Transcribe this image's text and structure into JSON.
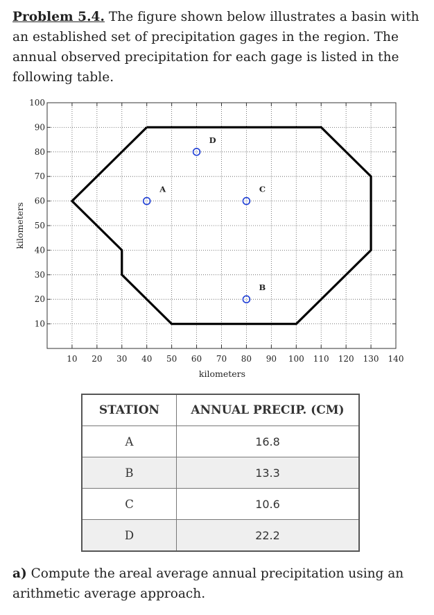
{
  "problem": {
    "heading": "Problem 5.4.",
    "text": " The figure shown below illustrates a basin with an established set of precipitation gages in the region. The annual observed precipitation for each gage is listed in the following table."
  },
  "chart_data": {
    "type": "scatter",
    "title": "",
    "xlabel": "kilometers",
    "ylabel": "kilometers",
    "xlim": [
      0,
      140
    ],
    "ylim": [
      0,
      100
    ],
    "x_ticks": [
      10,
      20,
      30,
      40,
      50,
      60,
      70,
      80,
      90,
      100,
      110,
      120,
      130,
      140
    ],
    "y_ticks": [
      10,
      20,
      30,
      40,
      50,
      60,
      70,
      80,
      90,
      100
    ],
    "grid": true,
    "boundary": [
      [
        40,
        90
      ],
      [
        110,
        90
      ],
      [
        130,
        70
      ],
      [
        130,
        40
      ],
      [
        100,
        10
      ],
      [
        50,
        10
      ],
      [
        30,
        30
      ],
      [
        30,
        40
      ],
      [
        10,
        60
      ],
      [
        40,
        90
      ]
    ],
    "stations": [
      {
        "name": "A",
        "x": 40,
        "y": 60
      },
      {
        "name": "B",
        "x": 80,
        "y": 20
      },
      {
        "name": "C",
        "x": 80,
        "y": 60
      },
      {
        "name": "D",
        "x": 60,
        "y": 80
      }
    ],
    "marker_color": "#1f3fd6",
    "boundary_color": "#000000"
  },
  "table": {
    "headers": [
      "STATION",
      "ANNUAL PRECIP. (CM)"
    ],
    "rows": [
      [
        "A",
        "16.8"
      ],
      [
        "B",
        "13.3"
      ],
      [
        "C",
        "10.6"
      ],
      [
        "D",
        "22.2"
      ]
    ]
  },
  "question": {
    "label": "a)",
    "text": " Compute the areal average annual precipitation using an arithmetic average approach."
  }
}
